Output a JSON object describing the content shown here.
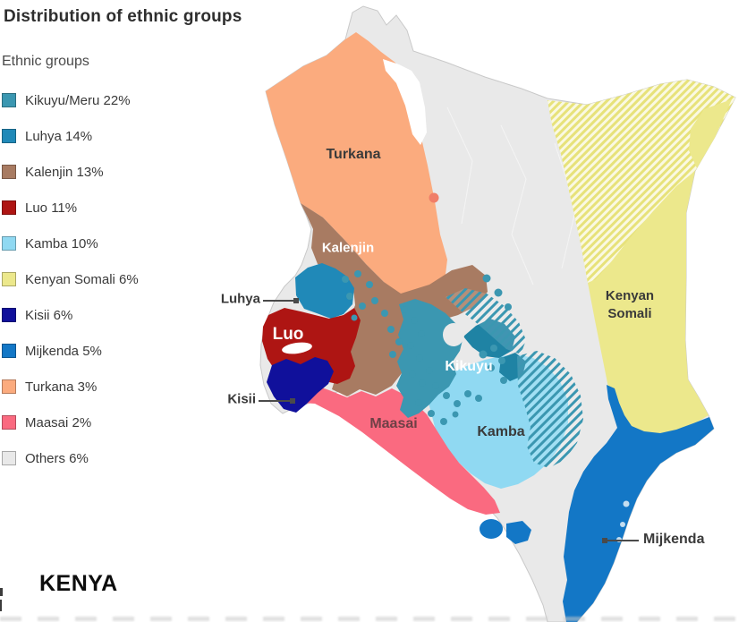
{
  "title": "Distribution of ethnic groups",
  "country_label": "KENYA",
  "legend": {
    "heading": "Ethnic groups",
    "items": [
      {
        "key": "kikuyu",
        "label": "Kikuyu/Meru 22%",
        "color": "#3B97B1"
      },
      {
        "key": "luhya",
        "label": "Luhya 14%",
        "color": "#2089B8"
      },
      {
        "key": "kalenjin",
        "label": "Kalenjin 13%",
        "color": "#A87B62"
      },
      {
        "key": "luo",
        "label": "Luo 11%",
        "color": "#AE1513"
      },
      {
        "key": "kamba",
        "label": "Kamba 10%",
        "color": "#90D9F2"
      },
      {
        "key": "somali",
        "label": "Kenyan Somali 6%",
        "color": "#ECE88C"
      },
      {
        "key": "kisii",
        "label": "Kisii 6%",
        "color": "#10109B"
      },
      {
        "key": "mijkenda",
        "label": "Mijkenda 5%",
        "color": "#1377C6"
      },
      {
        "key": "turkana",
        "label": "Turkana 3%",
        "color": "#FBAB7E"
      },
      {
        "key": "maasai",
        "label": "Maasai 2%",
        "color": "#FA6A80"
      },
      {
        "key": "others",
        "label": "Others 6%",
        "color": "#E9E9E9"
      }
    ]
  },
  "map": {
    "labels": {
      "turkana": "Turkana",
      "kalenjin": "Kalenjin",
      "luhya": "Luhya",
      "luo": "Luo",
      "kisii": "Kisii",
      "kikuyu": "Kikuyu",
      "kamba": "Kamba",
      "maasai": "Maasai",
      "somali_line1": "Kenyan",
      "somali_line2": "Somali",
      "mijkenda": "Mijkenda"
    },
    "colors": {
      "map_border": "#C9C9C9",
      "kikuyu_dark": "#1F83A4",
      "hatch_yellow_stripe": "#E7E27A",
      "hatch_yellow_bg": "#FAF9E2",
      "red_enclave_dot": "#F07E68",
      "leader_line": "#4a4a4a"
    }
  }
}
